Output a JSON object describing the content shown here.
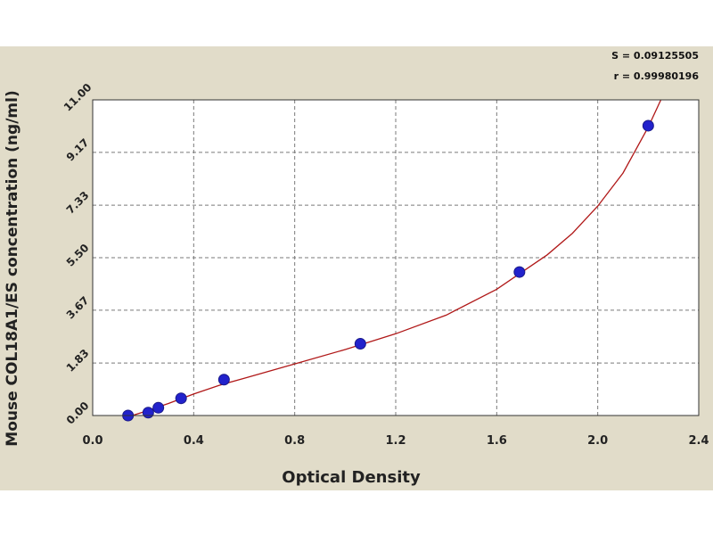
{
  "chart_data": {
    "type": "scatter",
    "title": "",
    "xlabel": "Optical Density",
    "ylabel": "Mouse COL18A1/ES concentration (ng/ml)",
    "xlim": [
      0.0,
      2.4
    ],
    "ylim": [
      0.0,
      11.0
    ],
    "x_ticks": [
      0.0,
      0.4,
      0.8,
      1.2,
      1.6,
      2.0,
      2.4
    ],
    "x_tick_labels": [
      "0.0",
      "0.4",
      "0.8",
      "1.2",
      "1.6",
      "2.0",
      "2.4"
    ],
    "y_ticks": [
      0.0,
      1.83,
      3.67,
      5.5,
      7.33,
      9.17,
      11.0
    ],
    "y_tick_labels": [
      "0.00",
      "1.83",
      "3.67",
      "5.50",
      "7.33",
      "9.17",
      "11.00"
    ],
    "grid": true,
    "series": [
      {
        "points": [
          {
            "x": 0.14,
            "y": 0.0
          },
          {
            "x": 0.22,
            "y": 0.1
          },
          {
            "x": 0.26,
            "y": 0.27
          },
          {
            "x": 0.35,
            "y": 0.6
          },
          {
            "x": 0.52,
            "y": 1.25
          },
          {
            "x": 1.06,
            "y": 2.5
          },
          {
            "x": 1.69,
            "y": 5.0
          },
          {
            "x": 2.2,
            "y": 10.1
          }
        ]
      }
    ],
    "fit_curve": [
      {
        "x": 0.12,
        "y": -0.1
      },
      {
        "x": 0.2,
        "y": 0.12
      },
      {
        "x": 0.3,
        "y": 0.42
      },
      {
        "x": 0.4,
        "y": 0.75
      },
      {
        "x": 0.5,
        "y": 1.05
      },
      {
        "x": 0.6,
        "y": 1.3
      },
      {
        "x": 0.8,
        "y": 1.8
      },
      {
        "x": 1.0,
        "y": 2.3
      },
      {
        "x": 1.2,
        "y": 2.85
      },
      {
        "x": 1.4,
        "y": 3.5
      },
      {
        "x": 1.6,
        "y": 4.4
      },
      {
        "x": 1.7,
        "y": 5.0
      },
      {
        "x": 1.8,
        "y": 5.6
      },
      {
        "x": 1.9,
        "y": 6.35
      },
      {
        "x": 2.0,
        "y": 7.3
      },
      {
        "x": 2.1,
        "y": 8.45
      },
      {
        "x": 2.2,
        "y": 10.05
      },
      {
        "x": 2.25,
        "y": 11.0
      }
    ],
    "stats": {
      "s": "S = 0.09125505",
      "r": "r = 0.99980196"
    },
    "colors": {
      "point": "#2222cc",
      "curve": "#b01818",
      "grid": "#7a7a7a",
      "plot_bg": "#ffffff",
      "frame_bg": "#e1dcc9"
    }
  }
}
